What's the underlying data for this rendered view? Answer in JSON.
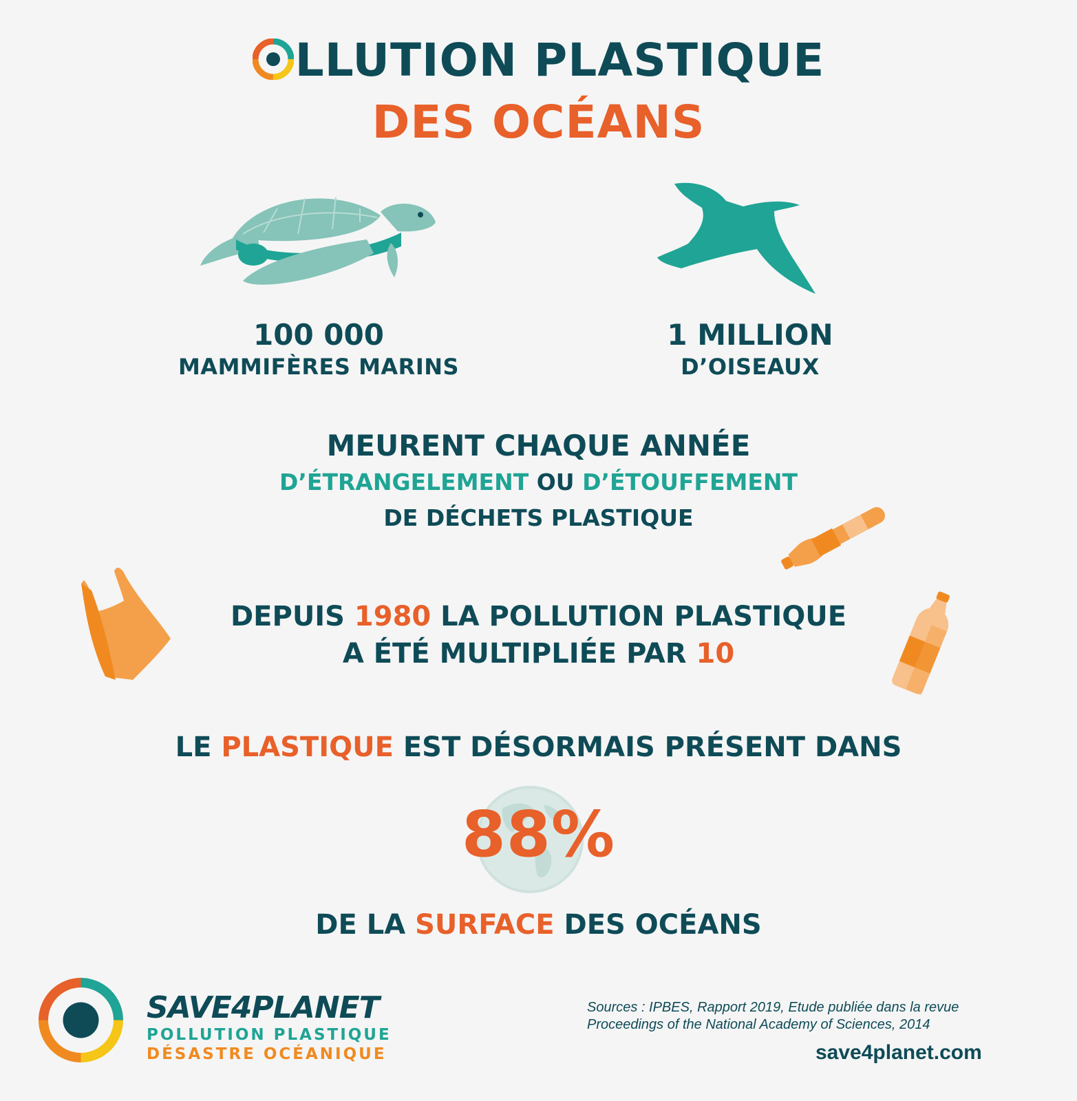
{
  "title": {
    "line1_rest": "LLUTION PLASTIQUE",
    "line1_prefix": "P",
    "line2": "DES OCÉANS"
  },
  "stats": {
    "mammals": {
      "number": "100 000",
      "label": "MAMMIFÈRES MARINS"
    },
    "birds": {
      "number": "1 MILLION",
      "label": "D’OISEAUX"
    }
  },
  "death": {
    "line1": "MEURENT CHAQUE ANNÉE",
    "part_a": "D’ÉTRANGELEMENT",
    "part_or": " OU ",
    "part_b": "D’ÉTOUFFEMENT",
    "line3": "DE DÉCHETS PLASTIQUE"
  },
  "growth": {
    "a": "DEPUIS ",
    "year": "1980",
    "b": " LA POLLUTION PLASTIQUE",
    "c": "A ÉTÉ MULTIPLIÉE PAR ",
    "factor": "10"
  },
  "presence": {
    "a": "LE ",
    "word": "PLASTIQUE",
    "b": " EST DÉSORMAIS PRÉSENT DANS",
    "percent": "88%",
    "c": "DE LA ",
    "surface": "SURFACE",
    "d": " DES OCÉANS"
  },
  "footer": {
    "brand": "SAVE4PLANET",
    "tagline1": "POLLUTION PLASTIQUE",
    "tagline2": "DÉSASTRE OCÉANIQUE",
    "sources_line1": "Sources : IPBES, Rapport 2019, Etude publiée dans la revue",
    "sources_line2": "Proceedings of the National Academy of Sciences, 2014",
    "website": "save4planet.com"
  },
  "colors": {
    "navy": "#0e4b57",
    "teal": "#1fa495",
    "orange": "#e8602a",
    "light_orange": "#f4a04a",
    "background": "#f5f5f5"
  },
  "icons": [
    "turtle-icon",
    "bird-icon",
    "plastic-bag-icon",
    "bottle-icon",
    "globe-icon",
    "save4planet-logo"
  ]
}
